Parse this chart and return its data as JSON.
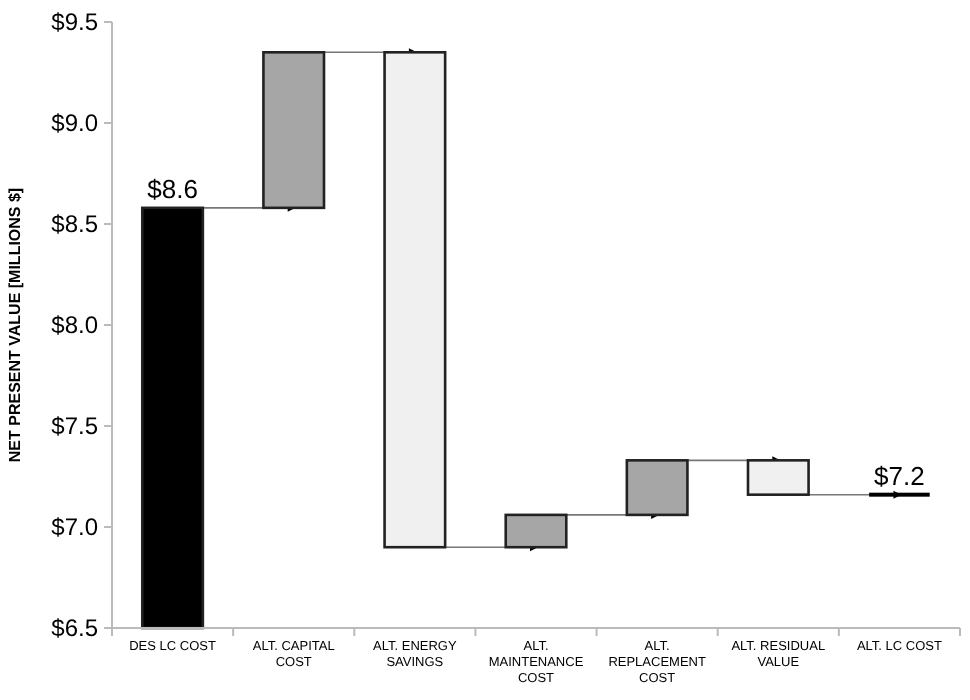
{
  "chart_data": {
    "type": "bar",
    "ylabel": "NET PRESENT VALUE [MILLIONS $]",
    "categories": [
      "DES LC COST",
      "ALT. CAPITAL COST",
      "ALT. ENERGY SAVINGS",
      "ALT. MAINTENANCE COST",
      "ALT. REPLACEMENT COST",
      "ALT. RESIDUAL VALUE",
      "ALT. LC COST"
    ],
    "base": [
      6.5,
      8.58,
      6.9,
      6.9,
      7.06,
      7.16,
      7.16
    ],
    "values": [
      2.08,
      0.77,
      2.45,
      0.16,
      0.27,
      0.17,
      0
    ],
    "colors": [
      "#000000",
      "#a6a6a6",
      "#f0f0f0",
      "#a6a6a6",
      "#a6a6a6",
      "#f0f0f0",
      "#000000"
    ],
    "value_labels": [
      "$8.6",
      null,
      null,
      null,
      null,
      null,
      "$7.2"
    ],
    "ylim": [
      6.5,
      9.5
    ],
    "yticks": [
      {
        "value": 6.5,
        "label": "$6.5"
      },
      {
        "value": 7,
        "label": "$7.0"
      },
      {
        "value": 7.5,
        "label": "$7.5"
      },
      {
        "value": 8,
        "label": "$8.0"
      },
      {
        "value": 8.5,
        "label": "$8.5"
      },
      {
        "value": 9,
        "label": "$9.0"
      },
      {
        "value": 9.5,
        "label": "$9.5"
      }
    ],
    "grid": false
  }
}
